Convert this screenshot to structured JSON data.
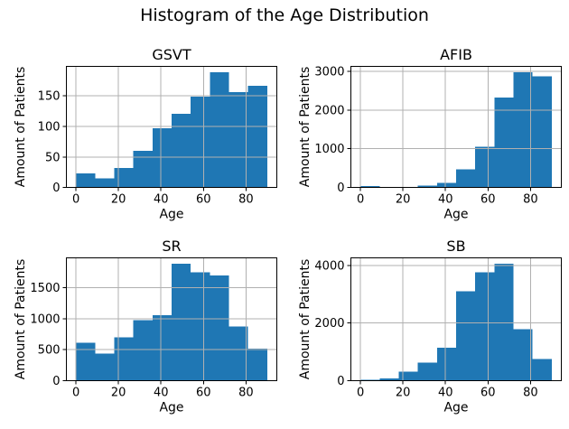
{
  "figure": {
    "title": "Histogram of the Age Distribution"
  },
  "colors": {
    "bar": "#1f77b4",
    "grid": "#b0b0b0",
    "spine": "#000000",
    "text": "#000000",
    "background": "#ffffff"
  },
  "chart_data": [
    {
      "type": "bar",
      "id": "gsvt",
      "title": "GSVT",
      "xlabel": "Age",
      "ylabel": "Amount of Patients",
      "bin_edges": [
        0,
        9,
        18,
        27,
        36,
        45,
        54,
        63,
        72,
        81,
        90
      ],
      "values": [
        23,
        15,
        32,
        60,
        97,
        121,
        149,
        189,
        156,
        167
      ],
      "xticks": [
        0,
        20,
        40,
        60,
        80
      ],
      "yticks": [
        0,
        50,
        100,
        150
      ],
      "xlim": [
        -4.5,
        94.5
      ],
      "ylim": [
        0,
        198.5
      ],
      "grid": true
    },
    {
      "type": "bar",
      "id": "afib",
      "title": "AFIB",
      "xlabel": "Age",
      "ylabel": "Amount of Patients",
      "bin_edges": [
        0,
        9,
        18,
        27,
        36,
        45,
        54,
        63,
        72,
        81,
        90
      ],
      "values": [
        30,
        5,
        15,
        45,
        115,
        470,
        1050,
        2320,
        2980,
        2870
      ],
      "xticks": [
        0,
        20,
        40,
        60,
        80
      ],
      "yticks": [
        0,
        1000,
        2000,
        3000
      ],
      "xlim": [
        -4.5,
        94.5
      ],
      "ylim": [
        0,
        3129
      ],
      "grid": true
    },
    {
      "type": "bar",
      "id": "sr",
      "title": "SR",
      "xlabel": "Age",
      "ylabel": "Amount of Patients",
      "bin_edges": [
        0,
        9,
        18,
        27,
        36,
        45,
        54,
        63,
        72,
        81,
        90
      ],
      "values": [
        610,
        440,
        700,
        980,
        1060,
        1890,
        1750,
        1700,
        875,
        520
      ],
      "xticks": [
        0,
        20,
        40,
        60,
        80
      ],
      "yticks": [
        0,
        500,
        1000,
        1500
      ],
      "xlim": [
        -4.5,
        94.5
      ],
      "ylim": [
        0,
        1984.5
      ],
      "grid": true
    },
    {
      "type": "bar",
      "id": "sb",
      "title": "SB",
      "xlabel": "Age",
      "ylabel": "Amount of Patients",
      "bin_edges": [
        0,
        9,
        18,
        27,
        36,
        45,
        54,
        63,
        72,
        81,
        90
      ],
      "values": [
        30,
        75,
        310,
        630,
        1150,
        3100,
        3760,
        4060,
        1780,
        750
      ],
      "xticks": [
        0,
        20,
        40,
        60,
        80
      ],
      "yticks": [
        0,
        2000,
        4000
      ],
      "xlim": [
        -4.5,
        94.5
      ],
      "ylim": [
        0,
        4263
      ],
      "grid": true
    }
  ]
}
